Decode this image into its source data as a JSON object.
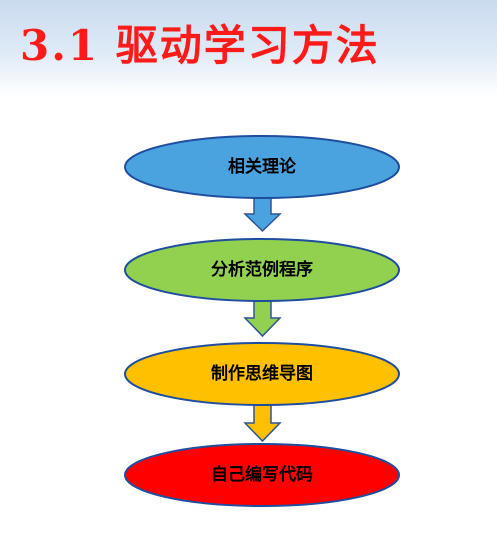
{
  "slide": {
    "title": "3.1 驱动学习方法"
  },
  "flow": {
    "steps": [
      {
        "label": "相关理论",
        "fill": "#4aa3df",
        "arrow_fill": "#4aa3df"
      },
      {
        "label": "分析范例程序",
        "fill": "#92d050",
        "arrow_fill": "#92d050"
      },
      {
        "label": "制作思维导图",
        "fill": "#ffc000",
        "arrow_fill": "#ffc000"
      },
      {
        "label": "自己编写代码",
        "fill": "#ff0000"
      }
    ]
  }
}
